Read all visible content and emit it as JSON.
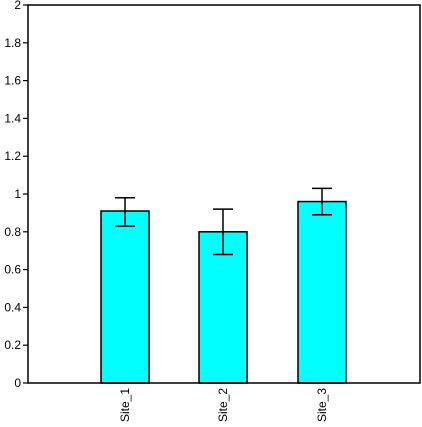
{
  "chart_data": {
    "type": "bar",
    "title": "",
    "xlabel": "",
    "ylabel": "",
    "categories": [
      "Site_1",
      "Site_2",
      "Site_3"
    ],
    "values": [
      0.91,
      0.8,
      0.96
    ],
    "error_low": [
      0.83,
      0.68,
      0.89
    ],
    "error_high": [
      0.98,
      0.92,
      1.03
    ],
    "ylim": [
      0,
      2
    ],
    "yticks": [
      0,
      0.2,
      0.4,
      0.6,
      0.8,
      1,
      1.2,
      1.4,
      1.6,
      1.8,
      2
    ],
    "ytick_labels": [
      "0",
      "0.2",
      "0.4",
      "0.6",
      "0.8",
      "1",
      "1.2",
      "1.4",
      "1.6",
      "1.8",
      "2"
    ],
    "grid": false,
    "bar_color": "#00ffff",
    "edge_color": "#000000"
  }
}
